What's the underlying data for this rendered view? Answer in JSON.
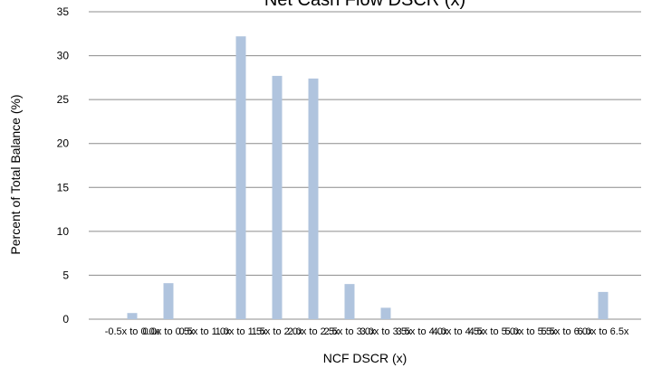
{
  "chart_data": {
    "type": "bar",
    "title": "Net Cash Flow DSCR (x)",
    "xlabel": "NCF DSCR (x)",
    "ylabel": "Percent of Total Balance (%)",
    "ylim": [
      0,
      35
    ],
    "yticks": [
      0,
      5,
      10,
      15,
      20,
      25,
      30,
      35
    ],
    "grid": true,
    "categories": [
      "-0.5x to 0.0x",
      "0.0x to 0.5x",
      "0.5x to 1.0x",
      "1.0x to 1.5x",
      "1.5x to 2.0x",
      "2.0x to 2.5x",
      "2.5x to 3.0x",
      "3.0x to 3.5x",
      "3.5x to 4.0x",
      "4.0x to 4.5x",
      "4.5x to 5.0x",
      "5.0x to 5.5x",
      "5.5x to 6.0x",
      "6.0x to 6.5x"
    ],
    "values": [
      0.7,
      4.1,
      0,
      32.2,
      27.7,
      27.4,
      4.0,
      1.3,
      0,
      0,
      0,
      0,
      0,
      3.1
    ],
    "bar_color": "#b0c4de"
  }
}
